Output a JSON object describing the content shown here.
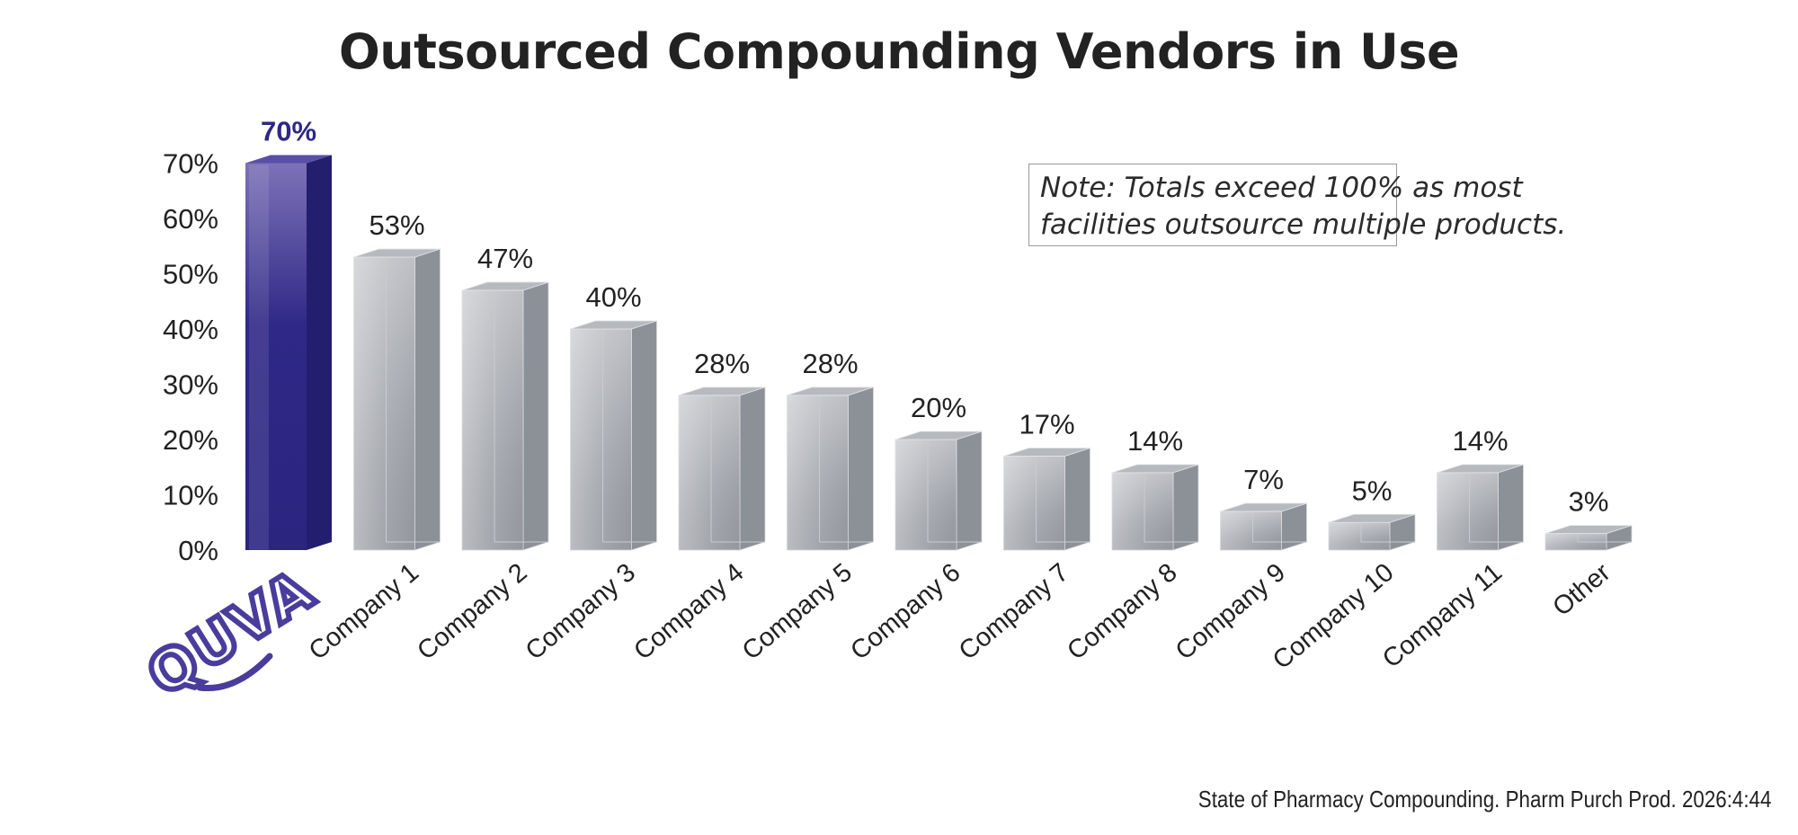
{
  "title": "Outsourced Compounding Vendors in Use",
  "note": {
    "line1": "Note: Totals exceed 100% as most",
    "line2": "facilities outsource multiple products."
  },
  "source": "State of Pharmacy Compounding. Pharm Purch Prod. 2026:4:44",
  "chart_data": {
    "type": "bar",
    "title": "Outsourced Compounding Vendors in Use",
    "xlabel": "",
    "ylabel": "",
    "categories": [
      "QUVA",
      "Company 1",
      "Company 2",
      "Company 3",
      "Company 4",
      "Company 5",
      "Company 6",
      "Company 7",
      "Company 8",
      "Company 9",
      "Company 10",
      "Company 11",
      "Other"
    ],
    "values": [
      70,
      53,
      47,
      40,
      28,
      28,
      20,
      17,
      14,
      7,
      5,
      14,
      3
    ],
    "value_labels": [
      "70%",
      "53%",
      "47%",
      "40%",
      "28%",
      "28%",
      "20%",
      "17%",
      "14%",
      "7%",
      "5%",
      "14%",
      "3%"
    ],
    "ylim": [
      0,
      70
    ],
    "yticks": [
      0,
      10,
      20,
      30,
      40,
      50,
      60,
      70
    ],
    "ytick_labels": [
      "0%",
      "10%",
      "20%",
      "30%",
      "40%",
      "50%",
      "60%",
      "70%"
    ],
    "grid": false,
    "highlight_category": "QUVA",
    "colors": {
      "highlight": "#2e2882",
      "bar": "#a9acb2",
      "text": "#222222",
      "logo": "#4a3c9c"
    }
  }
}
